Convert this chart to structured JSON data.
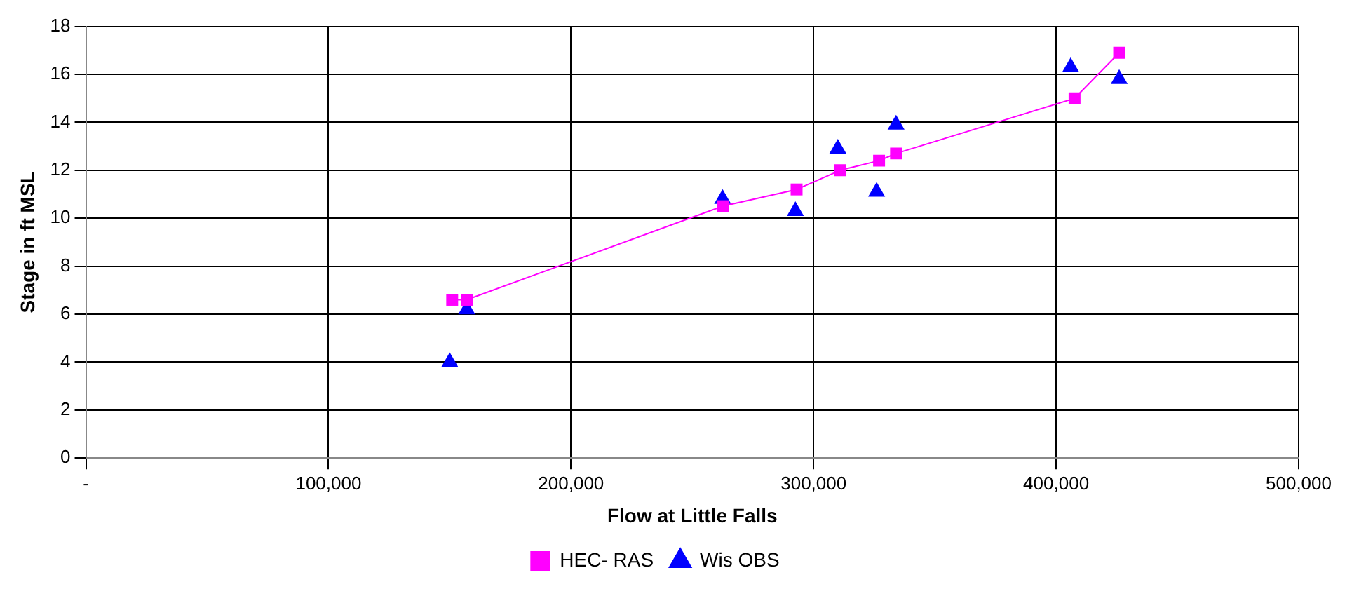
{
  "chart_data": {
    "type": "scatter",
    "xlabel": "Flow at Little Falls",
    "ylabel": "Stage in ft MSL",
    "xlim": [
      0,
      500000
    ],
    "xticks": [
      {
        "value": 0,
        "label": "-"
      },
      {
        "value": 100000,
        "label": "100,000"
      },
      {
        "value": 200000,
        "label": "200,000"
      },
      {
        "value": 300000,
        "label": "300,000"
      },
      {
        "value": 400000,
        "label": "400,000"
      },
      {
        "value": 500000,
        "label": "500,000"
      }
    ],
    "ylim": [
      0,
      18
    ],
    "yticks": [
      0,
      2,
      4,
      6,
      8,
      10,
      12,
      14,
      16,
      18
    ],
    "grid": true,
    "legend": "bottom",
    "series": [
      {
        "name": "HEC- RAS",
        "type": "line",
        "marker": "square",
        "color": "#ff00ff",
        "x": [
          151000,
          157000,
          262500,
          293000,
          311000,
          327000,
          334000,
          407600,
          426000
        ],
        "values": [
          6.6,
          6.6,
          10.5,
          11.2,
          12.0,
          12.4,
          12.7,
          15.0,
          16.9
        ]
      },
      {
        "name": "Wis OBS",
        "type": "scatter",
        "marker": "triangle",
        "color": "#0000ff",
        "x": [
          150000,
          157000,
          262500,
          292500,
          310000,
          326000,
          334000,
          406000,
          426000
        ],
        "values": [
          4.0,
          6.2,
          10.8,
          10.3,
          12.9,
          11.1,
          13.9,
          16.3,
          15.8
        ]
      }
    ]
  }
}
